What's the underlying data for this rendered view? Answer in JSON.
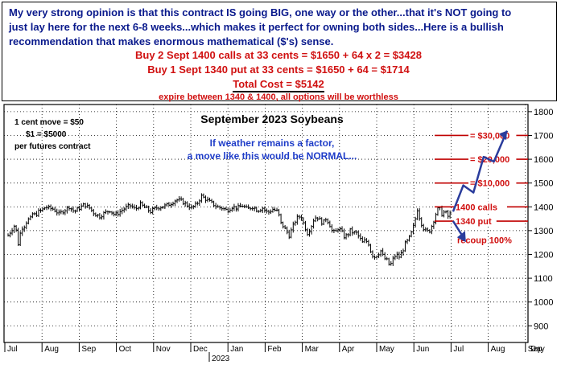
{
  "header": {
    "line1": "My very strong opinion is that this contract IS going BIG, one way or the other...that it's NOT going to",
    "line2": "just lay here for the next 6-8 weeks...which makes it perfect for owning both sides...Here is a bullish",
    "line3": "recommendation that makes enormous mathematical ($'s) sense.",
    "buy_calls": "Buy 2 Sept 1400 calls at 33 cents = $1650 + 64 x 2 = $3428",
    "buy_put": "Buy 1 Sept 1340 put at 33 cents = $1650 + 64 = $1714",
    "total_cost": "Total Cost = $5142",
    "expire_note": "expire between 1340 & 1400, all options will be worthless"
  },
  "colors": {
    "blue_text": "#0a1a8c",
    "red_text": "#d01010",
    "price": "#000000",
    "arrow": "#2a3c9c"
  },
  "chart_data": {
    "type": "bar",
    "subtype": "ohlc-daily",
    "title": "September 2023 Soybeans",
    "notes": [
      "1 cent move = $50",
      "$1 = $5000",
      "per futures contract"
    ],
    "weather_note": [
      "If weather remains a factor,",
      "a move like this would be NORMAL..."
    ],
    "y_ticks": [
      900,
      1000,
      1100,
      1200,
      1300,
      1400,
      1500,
      1600,
      1700,
      1800
    ],
    "ylim": [
      830,
      1830
    ],
    "x_months": [
      "Jul",
      "Aug",
      "Sep",
      "Oct",
      "Nov",
      "Dec",
      "Jan",
      "Feb",
      "Mar",
      "Apr",
      "May",
      "Jun",
      "Jul",
      "Aug",
      "Sep"
    ],
    "x_axis_label": "Day",
    "year_label": "2023",
    "grid": true,
    "closes": [
      [
        0,
        1280
      ],
      [
        3,
        1300
      ],
      [
        6,
        1320
      ],
      [
        8,
        1300
      ],
      [
        10,
        1245
      ],
      [
        13,
        1310
      ],
      [
        16,
        1320
      ],
      [
        19,
        1345
      ],
      [
        22,
        1350
      ],
      [
        24,
        1370
      ],
      [
        27,
        1365
      ],
      [
        30,
        1380
      ],
      [
        33,
        1385
      ],
      [
        37,
        1400
      ],
      [
        40,
        1395
      ],
      [
        45,
        1390
      ],
      [
        50,
        1370
      ],
      [
        55,
        1385
      ],
      [
        60,
        1400
      ],
      [
        65,
        1380
      ],
      [
        70,
        1395
      ],
      [
        75,
        1410
      ],
      [
        80,
        1395
      ],
      [
        85,
        1370
      ],
      [
        90,
        1360
      ],
      [
        95,
        1375
      ],
      [
        100,
        1385
      ],
      [
        105,
        1365
      ],
      [
        110,
        1380
      ],
      [
        115,
        1395
      ],
      [
        120,
        1405
      ],
      [
        125,
        1390
      ],
      [
        130,
        1410
      ],
      [
        135,
        1395
      ],
      [
        140,
        1380
      ],
      [
        145,
        1395
      ],
      [
        150,
        1400
      ],
      [
        155,
        1405
      ],
      [
        160,
        1415
      ],
      [
        165,
        1430
      ],
      [
        170,
        1425
      ],
      [
        175,
        1410
      ],
      [
        180,
        1395
      ],
      [
        185,
        1410
      ],
      [
        190,
        1445
      ],
      [
        195,
        1430
      ],
      [
        200,
        1415
      ],
      [
        205,
        1400
      ],
      [
        210,
        1395
      ],
      [
        215,
        1385
      ],
      [
        220,
        1400
      ],
      [
        225,
        1395
      ],
      [
        230,
        1405
      ],
      [
        235,
        1390
      ],
      [
        240,
        1400
      ],
      [
        245,
        1385
      ],
      [
        250,
        1395
      ],
      [
        255,
        1375
      ],
      [
        260,
        1390
      ],
      [
        265,
        1380
      ],
      [
        268,
        1330
      ],
      [
        270,
        1320
      ],
      [
        273,
        1300
      ],
      [
        276,
        1280
      ],
      [
        279,
        1310
      ],
      [
        282,
        1340
      ],
      [
        285,
        1360
      ],
      [
        288,
        1355
      ],
      [
        291,
        1320
      ],
      [
        294,
        1290
      ],
      [
        297,
        1310
      ],
      [
        300,
        1345
      ],
      [
        303,
        1360
      ],
      [
        306,
        1345
      ],
      [
        309,
        1330
      ],
      [
        312,
        1350
      ],
      [
        315,
        1335
      ],
      [
        318,
        1300
      ],
      [
        321,
        1290
      ],
      [
        324,
        1310
      ],
      [
        327,
        1300
      ],
      [
        330,
        1275
      ],
      [
        333,
        1280
      ],
      [
        336,
        1300
      ],
      [
        339,
        1290
      ],
      [
        342,
        1290
      ],
      [
        345,
        1270
      ],
      [
        348,
        1250
      ],
      [
        351,
        1260
      ],
      [
        354,
        1245
      ],
      [
        357,
        1200
      ],
      [
        360,
        1190
      ],
      [
        363,
        1200
      ],
      [
        366,
        1215
      ],
      [
        369,
        1185
      ],
      [
        372,
        1175
      ],
      [
        375,
        1150
      ],
      [
        378,
        1180
      ],
      [
        381,
        1200
      ],
      [
        384,
        1190
      ],
      [
        387,
        1210
      ],
      [
        390,
        1245
      ],
      [
        393,
        1260
      ],
      [
        396,
        1290
      ],
      [
        399,
        1330
      ],
      [
        402,
        1390
      ],
      [
        405,
        1340
      ],
      [
        408,
        1310
      ],
      [
        411,
        1295
      ],
      [
        414,
        1300
      ],
      [
        417,
        1330
      ],
      [
        420,
        1370
      ],
      [
        423,
        1400
      ],
      [
        426,
        1370
      ],
      [
        429,
        1380
      ],
      [
        432,
        1360
      ],
      [
        435,
        1375
      ]
    ],
    "annotations": [
      {
        "label": "= $30,000",
        "y": 1700
      },
      {
        "label": "= $20,000",
        "y": 1600
      },
      {
        "label": "= $10,000",
        "y": 1500
      },
      {
        "label": "1400 calls",
        "y": 1400
      },
      {
        "label": "1340 put",
        "y": 1340
      },
      {
        "label": "recoup 100%",
        "y": 1260
      }
    ],
    "projection_up": [
      [
        437,
        1380
      ],
      [
        447,
        1490
      ],
      [
        457,
        1460
      ],
      [
        467,
        1610
      ],
      [
        477,
        1590
      ],
      [
        490,
        1720
      ]
    ],
    "projection_down": [
      [
        437,
        1340
      ],
      [
        448,
        1265
      ]
    ]
  }
}
